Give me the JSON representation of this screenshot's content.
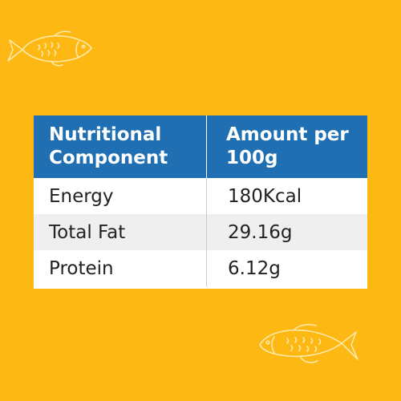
{
  "colors": {
    "background": "#FDB813",
    "header_bg": "#1F6FB2",
    "header_text": "#FFFFFF",
    "alt_row": "#EFEFEF"
  },
  "decorations": [
    "fish-icon",
    "fish-icon"
  ],
  "table": {
    "headers": [
      "Nutritional Component",
      "Amount per 100g"
    ],
    "rows": [
      [
        "Energy",
        "180Kcal"
      ],
      [
        "Total Fat",
        "29.16g"
      ],
      [
        "Protein",
        "6.12g"
      ]
    ]
  }
}
